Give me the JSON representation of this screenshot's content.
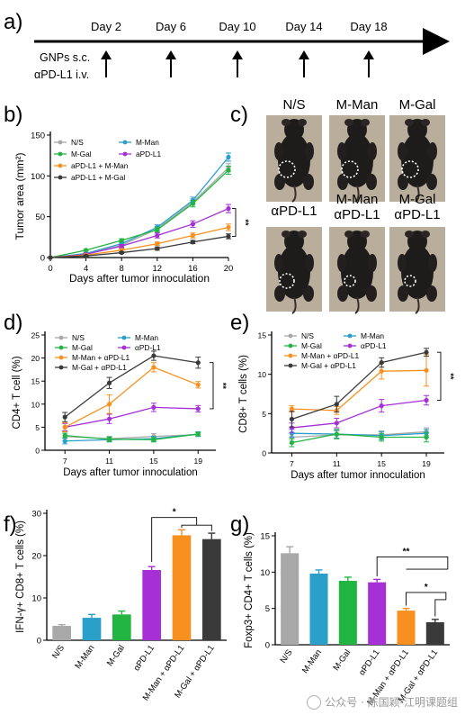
{
  "panels": {
    "a": "a)",
    "b": "b)",
    "c": "c)",
    "d": "d)",
    "e": "e)",
    "f": "f)",
    "g": "g)"
  },
  "timeline": {
    "days": [
      "Day 2",
      "Day 6",
      "Day 10",
      "Day 14",
      "Day 18"
    ],
    "treatment_line1": "GNPs s.c.",
    "treatment_line2": "αPD-L1 i.v."
  },
  "photos": {
    "labels": [
      [
        "N/S"
      ],
      [
        "M-Man"
      ],
      [
        "M-Gal"
      ],
      [
        "αPD-L1"
      ],
      [
        "M-Man",
        "αPD-L1"
      ],
      [
        "M-Gal",
        "αPD-L1"
      ]
    ],
    "bg_color": "#b9ae9b",
    "mouse_color": "#1e1c1b"
  },
  "colors": {
    "NS": "#a8a8a8",
    "MMan": "#2a9fc9",
    "MGal": "#22b541",
    "aPDL1": "#a630d6",
    "MManPD": "#f7901e",
    "MGalPD": "#3a3a3a"
  },
  "watermark": "公众号 · 陈国颖-江明课题组",
  "chart_data": [
    {
      "id": "b",
      "type": "line",
      "ylabel": "Tumor area (mm²)",
      "xlabel": "Days after tumor innoculation",
      "x": [
        0,
        4,
        8,
        12,
        16,
        20
      ],
      "xticks": [
        "0",
        "4",
        "8",
        "12",
        "16",
        "20"
      ],
      "yticks": [
        "0",
        "50",
        "100",
        "150"
      ],
      "ylim": [
        0,
        150
      ],
      "legend": "top-left",
      "significance": "**",
      "series": [
        {
          "name": "N/S",
          "color": "NS",
          "values": [
            0,
            4,
            15,
            35,
            68,
            110
          ],
          "err": [
            0,
            1,
            2,
            3,
            4,
            5
          ]
        },
        {
          "name": "M-Man",
          "color": "MMan",
          "values": [
            0,
            5,
            17,
            37,
            70,
            123
          ],
          "err": [
            0,
            1,
            2,
            3,
            4,
            5
          ]
        },
        {
          "name": "M-Gal",
          "color": "MGal",
          "values": [
            0,
            9,
            21,
            34,
            66,
            107
          ],
          "err": [
            0,
            1,
            2,
            3,
            4,
            5
          ]
        },
        {
          "name": "aPD-L1",
          "color": "aPDL1",
          "values": [
            0,
            4,
            14,
            27,
            41,
            60
          ],
          "err": [
            0,
            1,
            2,
            3,
            4,
            5
          ]
        },
        {
          "name": "aPD-L1 + M-Man",
          "color": "MManPD",
          "values": [
            0,
            3,
            9,
            17,
            27,
            37
          ],
          "err": [
            0,
            1,
            2,
            2,
            3,
            4
          ]
        },
        {
          "name": "aPD-L1 + M-Gal",
          "color": "MGalPD",
          "values": [
            0,
            2,
            6,
            11,
            19,
            26
          ],
          "err": [
            0,
            1,
            1,
            2,
            2,
            3
          ]
        }
      ]
    },
    {
      "id": "d",
      "type": "line",
      "ylabel": "CD4+ T cell (%)",
      "xlabel": "Days after tumor innoculation",
      "x": [
        7,
        11,
        15,
        19
      ],
      "xticks": [
        "7",
        "11",
        "15",
        "19"
      ],
      "yticks": [
        "0",
        "5",
        "10",
        "15",
        "20",
        "25"
      ],
      "ylim": [
        0,
        25
      ],
      "legend": "top-left",
      "significance": "**",
      "series": [
        {
          "name": "N/S",
          "color": "NS",
          "values": [
            3.0,
            2.5,
            3.0,
            3.4
          ],
          "err": [
            1.0,
            0.5,
            0.6,
            0.4
          ]
        },
        {
          "name": "M-Man",
          "color": "MMan",
          "values": [
            2.0,
            2.3,
            2.5,
            3.5
          ],
          "err": [
            0.6,
            0.5,
            0.5,
            0.5
          ]
        },
        {
          "name": "M-Gal",
          "color": "MGal",
          "values": [
            3.2,
            2.4,
            2.3,
            3.5
          ],
          "err": [
            0.5,
            0.5,
            0.5,
            0.4
          ]
        },
        {
          "name": "αPD-L1",
          "color": "aPDL1",
          "values": [
            5.0,
            6.8,
            9.3,
            9.0
          ],
          "err": [
            0.8,
            1.0,
            0.9,
            0.7
          ]
        },
        {
          "name": "M-Man + αPD-L1",
          "color": "MManPD",
          "values": [
            5.0,
            10.0,
            18.0,
            14.2
          ],
          "err": [
            1.0,
            2.0,
            1.0,
            0.7
          ]
        },
        {
          "name": "M-Gal + αPD-L1",
          "color": "MGalPD",
          "values": [
            7.2,
            14.6,
            20.5,
            19.0
          ],
          "err": [
            1.0,
            1.2,
            1.0,
            1.2
          ]
        }
      ]
    },
    {
      "id": "e",
      "type": "line",
      "ylabel": "CD8+ T cells (%)",
      "xlabel": "Days after tumor innoculation",
      "x": [
        7,
        11,
        15,
        19
      ],
      "xticks": [
        "7",
        "11",
        "15",
        "19"
      ],
      "yticks": [
        "0",
        "5",
        "10",
        "15"
      ],
      "ylim": [
        0,
        15
      ],
      "legend": "top-left",
      "significance": "**",
      "series": [
        {
          "name": "N/S",
          "color": "NS",
          "values": [
            2.0,
            2.3,
            2.3,
            2.7
          ],
          "err": [
            0.5,
            0.5,
            0.5,
            0.5
          ]
        },
        {
          "name": "M-Man",
          "color": "MMan",
          "values": [
            2.5,
            2.4,
            2.2,
            2.5
          ],
          "err": [
            0.5,
            0.5,
            0.5,
            0.5
          ]
        },
        {
          "name": "M-Gal",
          "color": "MGal",
          "values": [
            1.3,
            2.4,
            2.0,
            2.0
          ],
          "err": [
            0.5,
            0.6,
            0.5,
            0.6
          ]
        },
        {
          "name": "αPD-L1",
          "color": "aPDL1",
          "values": [
            3.2,
            3.8,
            6.0,
            6.7
          ],
          "err": [
            0.6,
            0.6,
            0.8,
            0.6
          ]
        },
        {
          "name": "M-Man + αPD-L1",
          "color": "MManPD",
          "values": [
            5.6,
            5.4,
            10.4,
            10.5
          ],
          "err": [
            0.4,
            0.5,
            1.0,
            2.0
          ]
        },
        {
          "name": "M-Gal + αPD-L1",
          "color": "MGalPD",
          "values": [
            4.3,
            6.2,
            11.5,
            12.8
          ],
          "err": [
            1.0,
            1.0,
            0.6,
            0.5
          ]
        }
      ]
    },
    {
      "id": "f",
      "type": "bar",
      "ylabel": "IFN-γ+ CD8+ T cells (%)",
      "categories": [
        "N/S",
        "M-Man",
        "M-Gal",
        "αPD-L1",
        "M-Man + αPD-L1",
        "M-Gal + αPD-L1"
      ],
      "colors": [
        "NS",
        "MMan",
        "MGal",
        "aPDL1",
        "MManPD",
        "MGalPD"
      ],
      "values": [
        3.4,
        5.3,
        6.1,
        16.6,
        24.8,
        23.9
      ],
      "err": [
        0.3,
        0.8,
        0.8,
        0.8,
        1.3,
        1.4
      ],
      "yticks": [
        "0",
        "10",
        "20",
        "30"
      ],
      "ylim": [
        0,
        30
      ],
      "significance": "*"
    },
    {
      "id": "g",
      "type": "bar",
      "ylabel": "Foxp3+ CD4+ T cells (%)",
      "categories": [
        "N/S",
        "M-Man",
        "M-Gal",
        "αPD-L1",
        "M-Man + αPD-L1",
        "M-Gal + αPD-L1"
      ],
      "colors": [
        "NS",
        "MMan",
        "MGal",
        "aPDL1",
        "MManPD",
        "MGalPD"
      ],
      "values": [
        12.6,
        9.8,
        8.8,
        8.6,
        4.7,
        3.1
      ],
      "err": [
        0.9,
        0.5,
        0.5,
        0.4,
        0.3,
        0.4
      ],
      "yticks": [
        "0",
        "5",
        "10",
        "15"
      ],
      "ylim": [
        0,
        15
      ],
      "significance": [
        "**",
        "*"
      ]
    }
  ]
}
